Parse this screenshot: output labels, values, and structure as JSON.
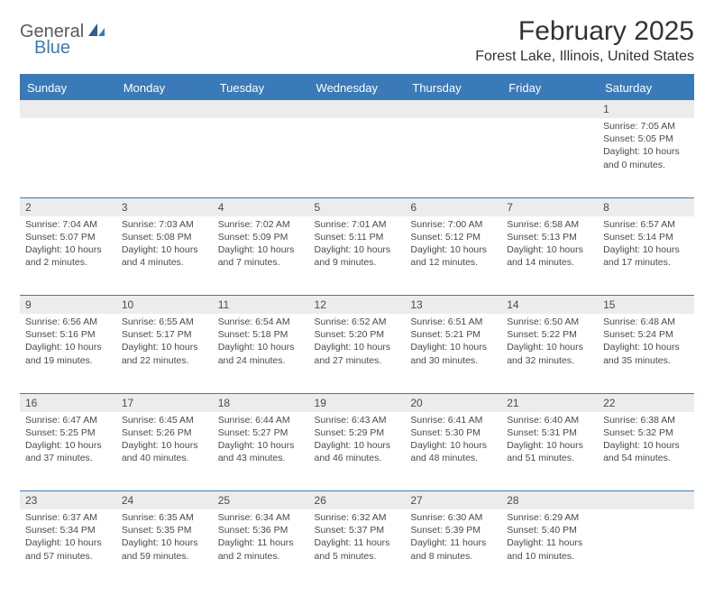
{
  "brand": {
    "part1": "General",
    "part2": "Blue"
  },
  "title": "February 2025",
  "location": "Forest Lake, Illinois, United States",
  "colors": {
    "header_bg": "#3a7ab8",
    "header_text": "#ffffff",
    "daynum_bg": "#ececec",
    "text": "#4a4a4a",
    "rule": "#3a7ab8",
    "page_bg": "#ffffff"
  },
  "columns": [
    "Sunday",
    "Monday",
    "Tuesday",
    "Wednesday",
    "Thursday",
    "Friday",
    "Saturday"
  ],
  "weeks": [
    {
      "nums": [
        "",
        "",
        "",
        "",
        "",
        "",
        "1"
      ],
      "cells": [
        null,
        null,
        null,
        null,
        null,
        null,
        {
          "sunrise": "Sunrise: 7:05 AM",
          "sunset": "Sunset: 5:05 PM",
          "daylight1": "Daylight: 10 hours",
          "daylight2": "and 0 minutes."
        }
      ]
    },
    {
      "nums": [
        "2",
        "3",
        "4",
        "5",
        "6",
        "7",
        "8"
      ],
      "cells": [
        {
          "sunrise": "Sunrise: 7:04 AM",
          "sunset": "Sunset: 5:07 PM",
          "daylight1": "Daylight: 10 hours",
          "daylight2": "and 2 minutes."
        },
        {
          "sunrise": "Sunrise: 7:03 AM",
          "sunset": "Sunset: 5:08 PM",
          "daylight1": "Daylight: 10 hours",
          "daylight2": "and 4 minutes."
        },
        {
          "sunrise": "Sunrise: 7:02 AM",
          "sunset": "Sunset: 5:09 PM",
          "daylight1": "Daylight: 10 hours",
          "daylight2": "and 7 minutes."
        },
        {
          "sunrise": "Sunrise: 7:01 AM",
          "sunset": "Sunset: 5:11 PM",
          "daylight1": "Daylight: 10 hours",
          "daylight2": "and 9 minutes."
        },
        {
          "sunrise": "Sunrise: 7:00 AM",
          "sunset": "Sunset: 5:12 PM",
          "daylight1": "Daylight: 10 hours",
          "daylight2": "and 12 minutes."
        },
        {
          "sunrise": "Sunrise: 6:58 AM",
          "sunset": "Sunset: 5:13 PM",
          "daylight1": "Daylight: 10 hours",
          "daylight2": "and 14 minutes."
        },
        {
          "sunrise": "Sunrise: 6:57 AM",
          "sunset": "Sunset: 5:14 PM",
          "daylight1": "Daylight: 10 hours",
          "daylight2": "and 17 minutes."
        }
      ]
    },
    {
      "nums": [
        "9",
        "10",
        "11",
        "12",
        "13",
        "14",
        "15"
      ],
      "cells": [
        {
          "sunrise": "Sunrise: 6:56 AM",
          "sunset": "Sunset: 5:16 PM",
          "daylight1": "Daylight: 10 hours",
          "daylight2": "and 19 minutes."
        },
        {
          "sunrise": "Sunrise: 6:55 AM",
          "sunset": "Sunset: 5:17 PM",
          "daylight1": "Daylight: 10 hours",
          "daylight2": "and 22 minutes."
        },
        {
          "sunrise": "Sunrise: 6:54 AM",
          "sunset": "Sunset: 5:18 PM",
          "daylight1": "Daylight: 10 hours",
          "daylight2": "and 24 minutes."
        },
        {
          "sunrise": "Sunrise: 6:52 AM",
          "sunset": "Sunset: 5:20 PM",
          "daylight1": "Daylight: 10 hours",
          "daylight2": "and 27 minutes."
        },
        {
          "sunrise": "Sunrise: 6:51 AM",
          "sunset": "Sunset: 5:21 PM",
          "daylight1": "Daylight: 10 hours",
          "daylight2": "and 30 minutes."
        },
        {
          "sunrise": "Sunrise: 6:50 AM",
          "sunset": "Sunset: 5:22 PM",
          "daylight1": "Daylight: 10 hours",
          "daylight2": "and 32 minutes."
        },
        {
          "sunrise": "Sunrise: 6:48 AM",
          "sunset": "Sunset: 5:24 PM",
          "daylight1": "Daylight: 10 hours",
          "daylight2": "and 35 minutes."
        }
      ]
    },
    {
      "nums": [
        "16",
        "17",
        "18",
        "19",
        "20",
        "21",
        "22"
      ],
      "cells": [
        {
          "sunrise": "Sunrise: 6:47 AM",
          "sunset": "Sunset: 5:25 PM",
          "daylight1": "Daylight: 10 hours",
          "daylight2": "and 37 minutes."
        },
        {
          "sunrise": "Sunrise: 6:45 AM",
          "sunset": "Sunset: 5:26 PM",
          "daylight1": "Daylight: 10 hours",
          "daylight2": "and 40 minutes."
        },
        {
          "sunrise": "Sunrise: 6:44 AM",
          "sunset": "Sunset: 5:27 PM",
          "daylight1": "Daylight: 10 hours",
          "daylight2": "and 43 minutes."
        },
        {
          "sunrise": "Sunrise: 6:43 AM",
          "sunset": "Sunset: 5:29 PM",
          "daylight1": "Daylight: 10 hours",
          "daylight2": "and 46 minutes."
        },
        {
          "sunrise": "Sunrise: 6:41 AM",
          "sunset": "Sunset: 5:30 PM",
          "daylight1": "Daylight: 10 hours",
          "daylight2": "and 48 minutes."
        },
        {
          "sunrise": "Sunrise: 6:40 AM",
          "sunset": "Sunset: 5:31 PM",
          "daylight1": "Daylight: 10 hours",
          "daylight2": "and 51 minutes."
        },
        {
          "sunrise": "Sunrise: 6:38 AM",
          "sunset": "Sunset: 5:32 PM",
          "daylight1": "Daylight: 10 hours",
          "daylight2": "and 54 minutes."
        }
      ]
    },
    {
      "nums": [
        "23",
        "24",
        "25",
        "26",
        "27",
        "28",
        ""
      ],
      "cells": [
        {
          "sunrise": "Sunrise: 6:37 AM",
          "sunset": "Sunset: 5:34 PM",
          "daylight1": "Daylight: 10 hours",
          "daylight2": "and 57 minutes."
        },
        {
          "sunrise": "Sunrise: 6:35 AM",
          "sunset": "Sunset: 5:35 PM",
          "daylight1": "Daylight: 10 hours",
          "daylight2": "and 59 minutes."
        },
        {
          "sunrise": "Sunrise: 6:34 AM",
          "sunset": "Sunset: 5:36 PM",
          "daylight1": "Daylight: 11 hours",
          "daylight2": "and 2 minutes."
        },
        {
          "sunrise": "Sunrise: 6:32 AM",
          "sunset": "Sunset: 5:37 PM",
          "daylight1": "Daylight: 11 hours",
          "daylight2": "and 5 minutes."
        },
        {
          "sunrise": "Sunrise: 6:30 AM",
          "sunset": "Sunset: 5:39 PM",
          "daylight1": "Daylight: 11 hours",
          "daylight2": "and 8 minutes."
        },
        {
          "sunrise": "Sunrise: 6:29 AM",
          "sunset": "Sunset: 5:40 PM",
          "daylight1": "Daylight: 11 hours",
          "daylight2": "and 10 minutes."
        },
        null
      ]
    }
  ]
}
